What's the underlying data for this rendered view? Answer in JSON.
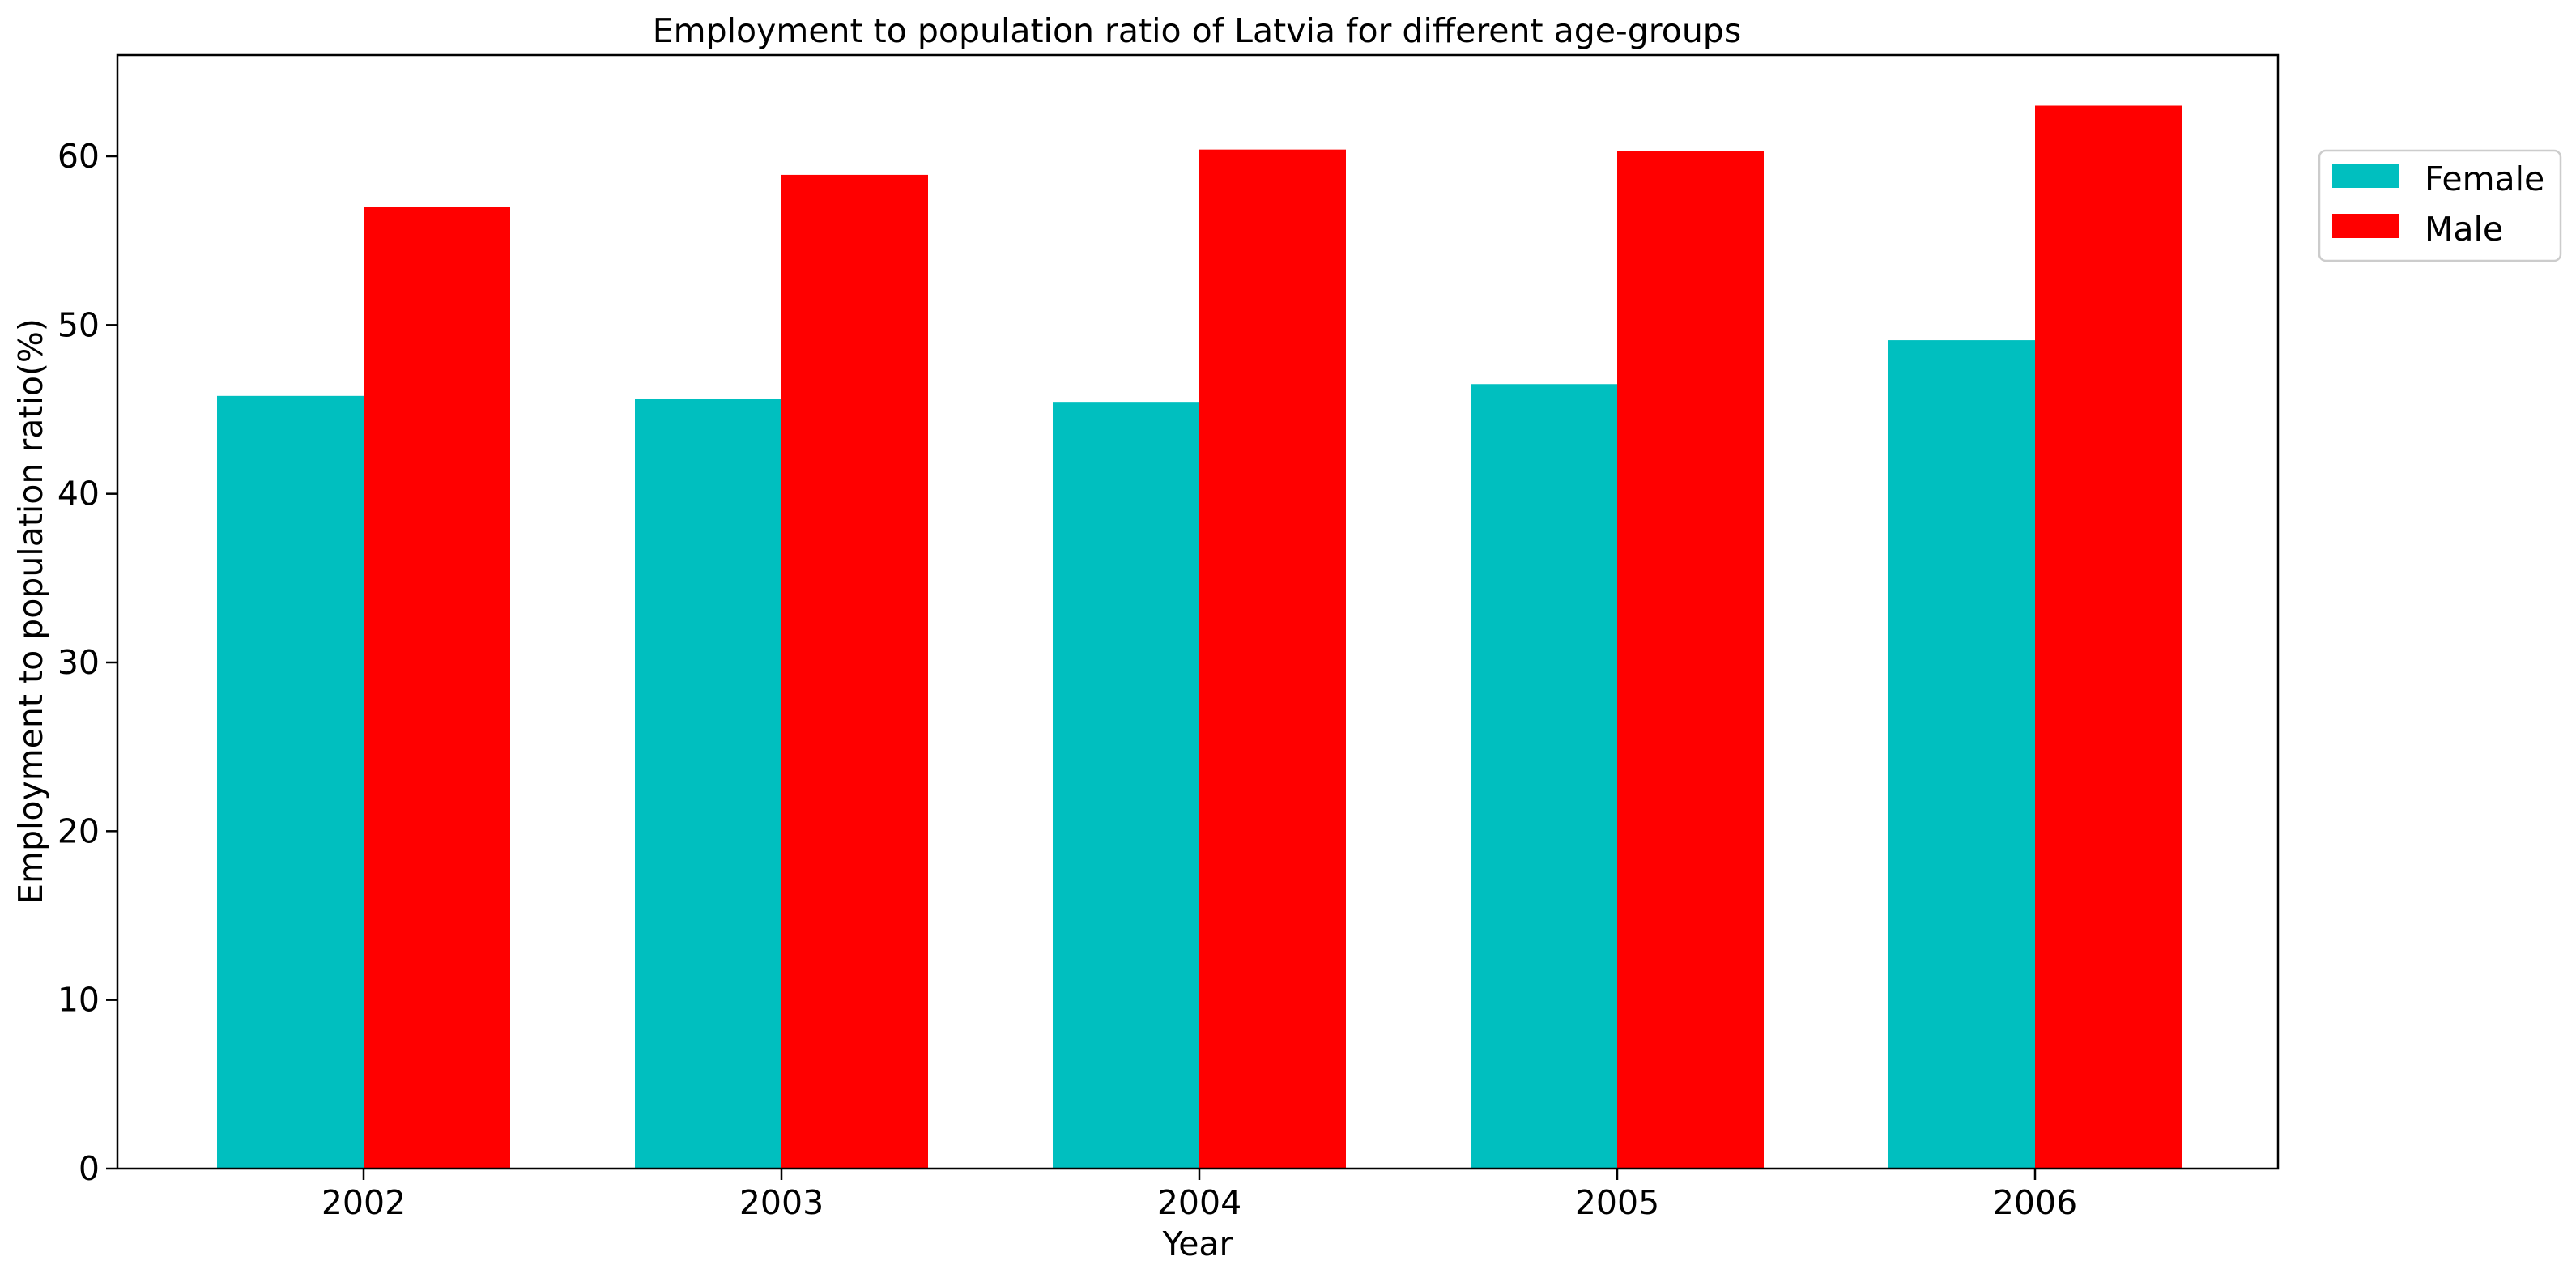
{
  "chart_data": {
    "type": "bar",
    "title": "Employment to population ratio of Latvia for different age-groups",
    "xlabel": "Year",
    "ylabel": "Employment to population ratio(%)",
    "categories": [
      "2002",
      "2003",
      "2004",
      "2005",
      "2006"
    ],
    "series": [
      {
        "name": "Female",
        "color": "#00bfbf",
        "values": [
          45.8,
          45.6,
          45.4,
          46.5,
          49.1
        ]
      },
      {
        "name": "Male",
        "color": "#ff0000",
        "values": [
          57.0,
          58.9,
          60.4,
          60.3,
          63.0
        ]
      }
    ],
    "ylim": [
      0,
      66
    ],
    "yticks": [
      0,
      10,
      20,
      30,
      40,
      50,
      60
    ],
    "grid": false,
    "legend_position": "upper right, outside plot"
  }
}
